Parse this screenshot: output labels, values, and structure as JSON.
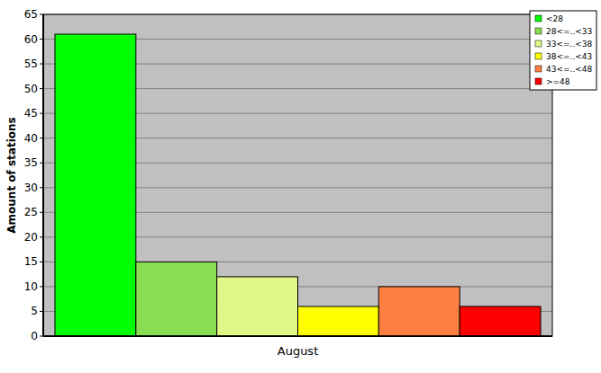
{
  "chart_data": {
    "type": "bar",
    "categories": [
      "August"
    ],
    "series": [
      {
        "name": "<28",
        "color": "#00ff00",
        "values": [
          61
        ]
      },
      {
        "name": "28<=..<33",
        "color": "#88dd55",
        "values": [
          15
        ]
      },
      {
        "name": "33<=..<38",
        "color": "#e0f888",
        "values": [
          12
        ]
      },
      {
        "name": "38<=..<43",
        "color": "#ffff00",
        "values": [
          6
        ]
      },
      {
        "name": "43<=..<48",
        "color": "#ff8040",
        "values": [
          10
        ]
      },
      {
        "name": ">=48",
        "color": "#ff0000",
        "values": [
          6
        ]
      }
    ],
    "ylabel": "Amount of stations",
    "ylim": [
      0,
      65
    ],
    "yticks": [
      0,
      5,
      10,
      15,
      20,
      25,
      30,
      35,
      40,
      45,
      50,
      55,
      60,
      65
    ],
    "grid": true,
    "legend": "top-right"
  }
}
